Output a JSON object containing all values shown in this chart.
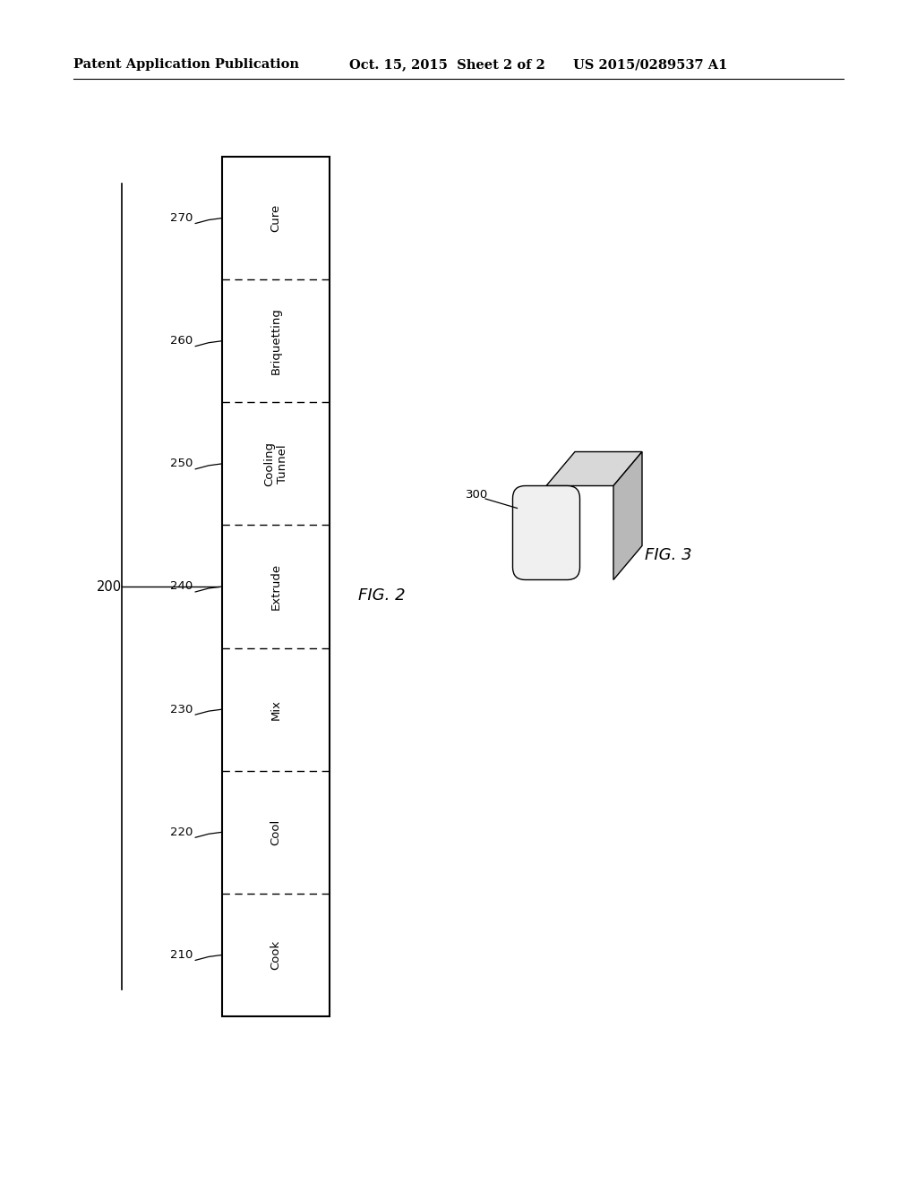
{
  "background_color": "#ffffff",
  "header_left": "Patent Application Publication",
  "header_center": "Oct. 15, 2015  Sheet 2 of 2",
  "header_right": "US 2015/0289537 A1",
  "header_fontsize": 10.5,
  "fig2_label": "FIG. 2",
  "fig3_label": "FIG. 3",
  "fig_label_fontsize": 13,
  "diagram_200_label": "200",
  "steps": [
    {
      "label": "Cook",
      "ref": "210",
      "segment": 0
    },
    {
      "label": "Cool",
      "ref": "220",
      "segment": 1
    },
    {
      "label": "Mix",
      "ref": "230",
      "segment": 2
    },
    {
      "label": "Extrude",
      "ref": "240",
      "segment": 3
    },
    {
      "label": "Cooling\nTunnel",
      "ref": "250",
      "segment": 4
    },
    {
      "label": "Briquetting",
      "ref": "260",
      "segment": 5
    },
    {
      "label": "Cure",
      "ref": "270",
      "segment": 6
    }
  ],
  "n_steps": 7,
  "step_label_fontsize": 9.5,
  "ref_label_fontsize": 9.5,
  "block_color": "#ffffff",
  "block_edge_color": "#000000",
  "dashed_line_color": "#000000"
}
